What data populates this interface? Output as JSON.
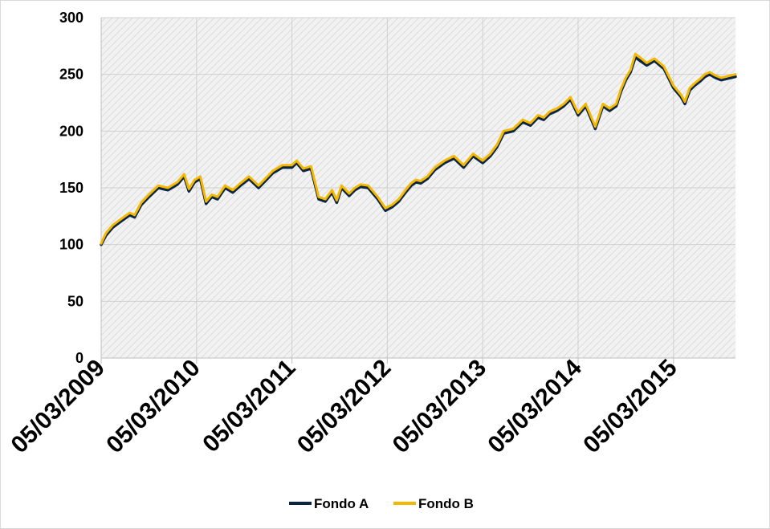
{
  "chart_data": {
    "type": "line",
    "title": "",
    "xlabel": "",
    "ylabel": "",
    "ylim": [
      0,
      300
    ],
    "yticks": [
      0,
      50,
      100,
      150,
      200,
      250,
      300
    ],
    "x_tick_labels": [
      "05/03/2009",
      "05/03/2010",
      "05/03/2011",
      "05/03/2012",
      "05/03/2013",
      "05/03/2014",
      "05/03/2015"
    ],
    "x_range_years": [
      0,
      6.65
    ],
    "grid": true,
    "legend_position": "bottom",
    "series": [
      {
        "name": "Fondo A",
        "color": "#0b2545",
        "x": [
          0,
          0.05,
          0.12,
          0.2,
          0.3,
          0.35,
          0.42,
          0.5,
          0.6,
          0.7,
          0.8,
          0.87,
          0.92,
          0.98,
          1.04,
          1.1,
          1.16,
          1.22,
          1.3,
          1.38,
          1.46,
          1.55,
          1.65,
          1.72,
          1.8,
          1.9,
          2.0,
          2.05,
          2.12,
          2.2,
          2.28,
          2.35,
          2.42,
          2.47,
          2.52,
          2.6,
          2.66,
          2.72,
          2.8,
          2.9,
          2.98,
          3.05,
          3.12,
          3.2,
          3.25,
          3.3,
          3.35,
          3.42,
          3.5,
          3.6,
          3.7,
          3.8,
          3.9,
          4.0,
          4.08,
          4.15,
          4.22,
          4.32,
          4.42,
          4.5,
          4.58,
          4.64,
          4.7,
          4.78,
          4.85,
          4.92,
          5.0,
          5.08,
          5.18,
          5.26,
          5.33,
          5.4,
          5.45,
          5.5,
          5.55,
          5.6,
          5.65,
          5.72,
          5.8,
          5.9,
          6.0,
          6.08,
          6.12,
          6.17,
          6.22,
          6.28,
          6.33,
          6.38,
          6.44,
          6.5,
          6.55,
          6.6,
          6.65
        ],
        "values": [
          100,
          108,
          115,
          120,
          126,
          124,
          135,
          142,
          150,
          148,
          153,
          160,
          147,
          155,
          158,
          136,
          142,
          140,
          150,
          146,
          152,
          158,
          150,
          156,
          163,
          168,
          168,
          172,
          165,
          167,
          140,
          138,
          146,
          137,
          150,
          143,
          148,
          151,
          150,
          140,
          130,
          133,
          138,
          147,
          152,
          155,
          154,
          158,
          166,
          172,
          176,
          168,
          178,
          172,
          178,
          186,
          198,
          200,
          208,
          205,
          212,
          210,
          215,
          218,
          222,
          228,
          214,
          222,
          202,
          222,
          218,
          222,
          235,
          245,
          252,
          265,
          262,
          258,
          262,
          255,
          238,
          230,
          224,
          236,
          240,
          244,
          248,
          250,
          247,
          245,
          246,
          247,
          248
        ]
      },
      {
        "name": "Fondo B",
        "color": "#f5b800",
        "x": [
          0,
          0.05,
          0.12,
          0.2,
          0.3,
          0.35,
          0.42,
          0.5,
          0.6,
          0.7,
          0.8,
          0.87,
          0.92,
          0.98,
          1.04,
          1.1,
          1.16,
          1.22,
          1.3,
          1.38,
          1.46,
          1.55,
          1.65,
          1.72,
          1.8,
          1.9,
          2.0,
          2.05,
          2.12,
          2.2,
          2.28,
          2.35,
          2.42,
          2.47,
          2.52,
          2.6,
          2.66,
          2.72,
          2.8,
          2.9,
          2.98,
          3.05,
          3.12,
          3.2,
          3.25,
          3.3,
          3.35,
          3.42,
          3.5,
          3.6,
          3.7,
          3.8,
          3.9,
          4.0,
          4.08,
          4.15,
          4.22,
          4.32,
          4.42,
          4.5,
          4.58,
          4.64,
          4.7,
          4.78,
          4.85,
          4.92,
          5.0,
          5.08,
          5.18,
          5.26,
          5.33,
          5.4,
          5.45,
          5.5,
          5.55,
          5.6,
          5.65,
          5.72,
          5.8,
          5.9,
          6.0,
          6.08,
          6.12,
          6.17,
          6.22,
          6.28,
          6.33,
          6.38,
          6.44,
          6.5,
          6.55,
          6.6,
          6.65
        ],
        "values": [
          101,
          110,
          117,
          122,
          128,
          126,
          137,
          144,
          152,
          150,
          155,
          162,
          149,
          157,
          160,
          138,
          144,
          142,
          152,
          148,
          154,
          160,
          152,
          158,
          165,
          170,
          170,
          174,
          167,
          169,
          142,
          140,
          148,
          139,
          152,
          145,
          150,
          153,
          152,
          142,
          132,
          135,
          140,
          149,
          154,
          157,
          156,
          160,
          168,
          174,
          178,
          170,
          180,
          174,
          180,
          188,
          200,
          202,
          210,
          207,
          214,
          212,
          217,
          220,
          224,
          230,
          216,
          224,
          204,
          224,
          220,
          224,
          237,
          247,
          254,
          268,
          265,
          260,
          264,
          257,
          240,
          232,
          226,
          238,
          242,
          246,
          250,
          252,
          249,
          247,
          248,
          249,
          250
        ]
      }
    ]
  }
}
